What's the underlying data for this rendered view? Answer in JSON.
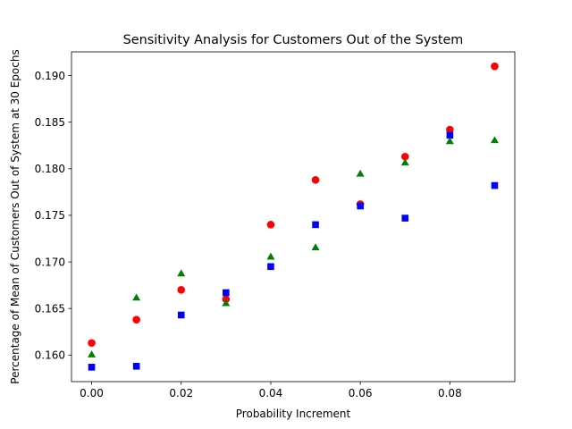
{
  "chart_data": {
    "type": "scatter",
    "title": "Sensitivity Analysis for Customers Out of the System",
    "xlabel": "Probability Increment",
    "ylabel": "Percentage of Mean of Customers Out of System at 30 Epochs",
    "xlim": [
      -0.0045,
      0.0945
    ],
    "ylim": [
      0.15715,
      0.19255
    ],
    "xticks": [
      0.0,
      0.02,
      0.04,
      0.06,
      0.08
    ],
    "xtick_labels": [
      "0.00",
      "0.02",
      "0.04",
      "0.06",
      "0.08"
    ],
    "yticks": [
      0.16,
      0.165,
      0.17,
      0.175,
      0.18,
      0.185,
      0.19
    ],
    "ytick_labels": [
      "0.160",
      "0.165",
      "0.170",
      "0.175",
      "0.180",
      "0.185",
      "0.190"
    ],
    "grid": false,
    "legend": "none",
    "x": [
      0.0,
      0.01,
      0.02,
      0.03,
      0.04,
      0.05,
      0.06,
      0.07,
      0.08,
      0.09
    ],
    "series": [
      {
        "marker": "circle",
        "color": "#ff0000",
        "values": [
          0.1613,
          0.1638,
          0.167,
          0.166,
          0.174,
          0.1788,
          0.1762,
          0.1813,
          0.1842,
          0.191
        ]
      },
      {
        "marker": "square",
        "color": "#0000ff",
        "values": [
          0.1587,
          0.1588,
          0.1643,
          0.1667,
          0.1695,
          0.174,
          0.176,
          0.1747,
          0.1836,
          0.1782
        ]
      },
      {
        "marker": "triangle",
        "color": "#008000",
        "values": [
          0.16,
          0.1661,
          0.1687,
          0.1655,
          0.1705,
          0.1715,
          0.1794,
          0.1806,
          0.1829,
          0.183
        ]
      }
    ]
  }
}
